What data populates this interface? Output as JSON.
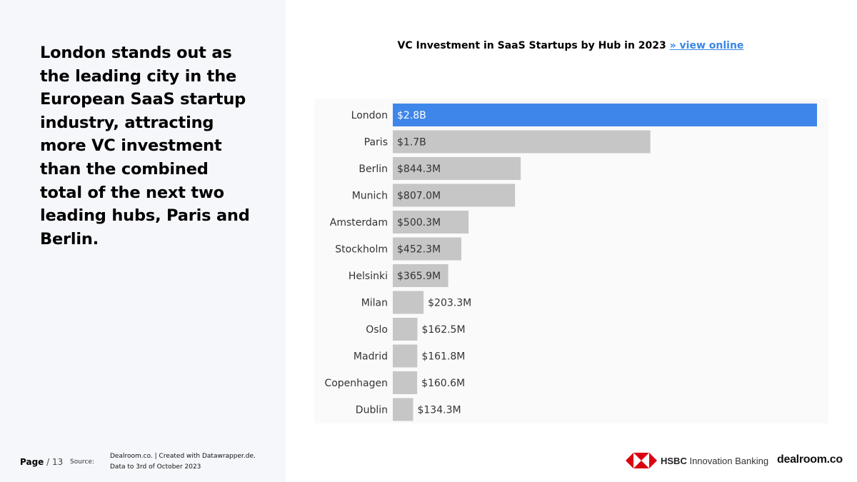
{
  "headline": "London stands out as the leading city in the European SaaS startup industry, attracting more VC investment than the combined total of the next two leading hubs, Paris and Berlin.",
  "chart_title": {
    "text": "VC Investment in SaaS Startups by Hub in 2023",
    "link": "» view online"
  },
  "chart_data": {
    "type": "bar",
    "orientation": "horizontal",
    "title": "VC Investment in SaaS Startups by Hub in 2023",
    "categories": [
      "London",
      "Paris",
      "Berlin",
      "Munich",
      "Amsterdam",
      "Stockholm",
      "Helsinki",
      "Milan",
      "Oslo",
      "Madrid",
      "Copenhagen",
      "Dublin"
    ],
    "values": [
      2800,
      1700,
      844.3,
      807.0,
      500.3,
      452.3,
      365.9,
      203.3,
      162.5,
      161.8,
      160.6,
      134.3
    ],
    "value_labels": [
      "$2.8B",
      "$1.7B",
      "$844.3M",
      "$807.0M",
      "$500.3M",
      "$452.3M",
      "$365.9M",
      "$203.3M",
      "$162.5M",
      "$161.8M",
      "$160.6M",
      "$134.3M"
    ],
    "unit": "$M",
    "xlim": [
      0,
      2800
    ],
    "highlight_category": "London",
    "colors": {
      "highlight": "#3f86ea",
      "default": "#c6c6c6",
      "label_in_highlight": "#ffffff",
      "label_default": "#333333"
    }
  },
  "footer": {
    "page_label": "Page",
    "page_sep": "/",
    "page_number": "13",
    "source_label": "Source:",
    "source_line1": "Dealroom.co. | Created with Datawrapper.de.",
    "source_line2": "Data to 3rd of October 2023"
  },
  "logos": {
    "hsbc_brand": "HSBC",
    "hsbc_sub": "Innovation Banking",
    "dealroom": "dealroom.co"
  }
}
